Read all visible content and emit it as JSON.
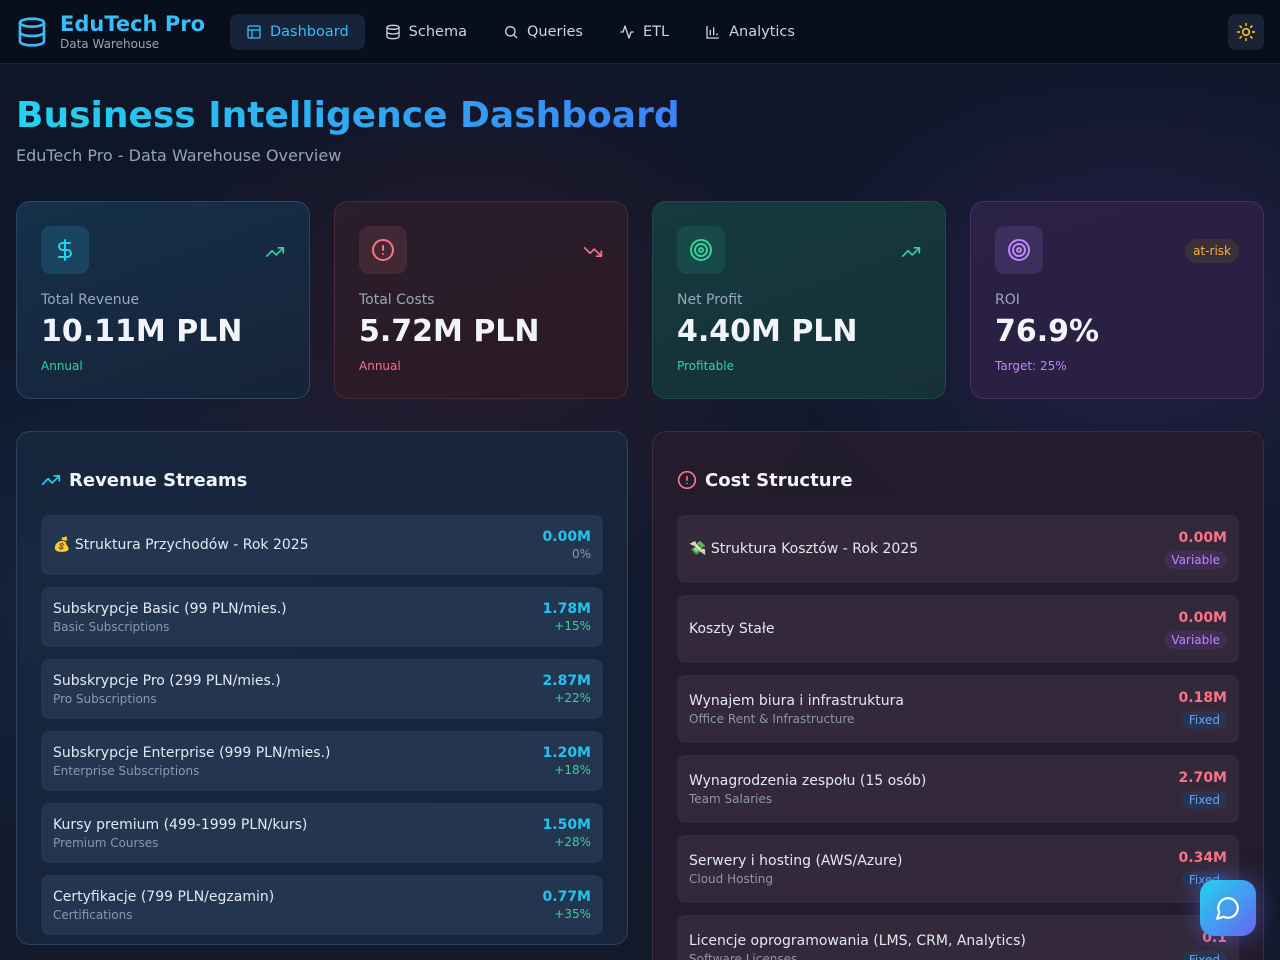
{
  "brand": {
    "title": "EduTech Pro",
    "subtitle": "Data Warehouse"
  },
  "nav": [
    {
      "label": "Dashboard",
      "icon": "layout-icon",
      "active": true
    },
    {
      "label": "Schema",
      "icon": "database-icon"
    },
    {
      "label": "Queries",
      "icon": "search-icon"
    },
    {
      "label": "ETL",
      "icon": "activity-icon"
    },
    {
      "label": "Analytics",
      "icon": "bar-chart-icon"
    }
  ],
  "header": {
    "title": "Business Intelligence Dashboard",
    "subtitle": "EduTech Pro - Data Warehouse Overview"
  },
  "kpis": [
    {
      "label": "Total Revenue",
      "value": "10.11M PLN",
      "footer": "Annual",
      "icon": "dollar-icon",
      "trend": "trending-up-icon"
    },
    {
      "label": "Total Costs",
      "value": "5.72M PLN",
      "footer": "Annual",
      "icon": "alert-circle-icon",
      "trend": "trending-down-icon"
    },
    {
      "label": "Net Profit",
      "value": "4.40M PLN",
      "footer": "Profitable",
      "icon": "target-icon",
      "trend": "trending-up-icon"
    },
    {
      "label": "ROI",
      "value": "76.9%",
      "footer": "Target: 25%",
      "icon": "target-icon",
      "badge": "at-risk"
    }
  ],
  "revenue": {
    "title": "Revenue Streams",
    "items": [
      {
        "name": "💰 Struktura Przychodów - Rok 2025",
        "sub": "",
        "amount": "0.00M",
        "change": "0%"
      },
      {
        "name": "Subskrypcje Basic (99 PLN/mies.)",
        "sub": "Basic Subscriptions",
        "amount": "1.78M",
        "change": "+15%"
      },
      {
        "name": "Subskrypcje Pro (299 PLN/mies.)",
        "sub": "Pro Subscriptions",
        "amount": "2.87M",
        "change": "+22%"
      },
      {
        "name": "Subskrypcje Enterprise (999 PLN/mies.)",
        "sub": "Enterprise Subscriptions",
        "amount": "1.20M",
        "change": "+18%"
      },
      {
        "name": "Kursy premium (499-1999 PLN/kurs)",
        "sub": "Premium Courses",
        "amount": "1.50M",
        "change": "+28%"
      },
      {
        "name": "Certyfikacje (799 PLN/egzamin)",
        "sub": "Certifications",
        "amount": "0.77M",
        "change": "+35%"
      }
    ]
  },
  "costs": {
    "title": "Cost Structure",
    "items": [
      {
        "name": "💸 Struktura Kosztów - Rok 2025",
        "sub": "",
        "amount": "0.00M",
        "tag": "Variable"
      },
      {
        "name": "Koszty Stałe",
        "sub": "",
        "amount": "0.00M",
        "tag": "Variable"
      },
      {
        "name": "Wynajem biura i infrastruktura",
        "sub": "Office Rent & Infrastructure",
        "amount": "0.18M",
        "tag": "Fixed"
      },
      {
        "name": "Wynagrodzenia zespołu (15 osób)",
        "sub": "Team Salaries",
        "amount": "2.70M",
        "tag": "Fixed"
      },
      {
        "name": "Serwery i hosting (AWS/Azure)",
        "sub": "Cloud Hosting",
        "amount": "0.34M",
        "tag": "Fixed"
      },
      {
        "name": "Licencje oprogramowania (LMS, CRM, Analytics)",
        "sub": "Software Licenses",
        "amount": "0.1",
        "tag": "Fixed"
      }
    ]
  },
  "colors": {
    "accent": "#38bdf8",
    "positive": "#34d399",
    "negative": "#fb7185",
    "purple": "#c084fc"
  }
}
